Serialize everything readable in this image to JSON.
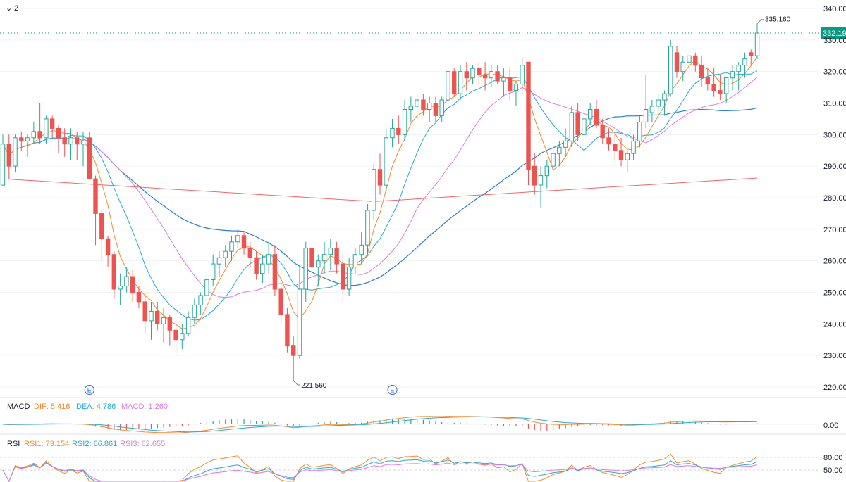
{
  "toolbar": {
    "collapse_glyph": "⌄",
    "count": "2"
  },
  "colors": {
    "up": "#26a69a",
    "down": "#ef5350",
    "grid": "#f0f3fa",
    "ma5": "#f28b30",
    "ma10": "#29a8d6",
    "ma20": "#e07be0",
    "ma60": "#2a7fd4",
    "ma250": "#ef6a6a",
    "price_tag": "#089981",
    "marker": "#2962ff"
  },
  "main_axis": {
    "ticks": [
      "340.00",
      "330.00",
      "320.00",
      "310.00",
      "300.00",
      "290.00",
      "280.00",
      "270.00",
      "260.00",
      "250.00",
      "240.00",
      "230.00",
      "220.00"
    ],
    "tick_values": [
      340,
      330,
      320,
      310,
      300,
      290,
      280,
      270,
      260,
      250,
      240,
      230,
      220
    ],
    "last_price": "332.19",
    "last_price_value": 332.19,
    "high_label": "335.160",
    "low_label": "221.560",
    "earnings_marker": "E"
  },
  "macd": {
    "title": "MACD",
    "dif": "DIF: 5.416",
    "dea": "DEA: 4.786",
    "macd": "MACD: 1.260",
    "axis_tick": "0.00"
  },
  "rsi": {
    "title": "RSI",
    "rsi1": "RSI1: 73.154",
    "rsi2": "RSI2: 66.861",
    "rsi3": "RSI3: 62.655",
    "axis_ticks": [
      "80.00",
      "50.00"
    ]
  },
  "chart_data": {
    "type": "candlestick",
    "ylim": [
      218,
      342
    ],
    "grid": true,
    "candles": [
      [
        284,
        300,
        284,
        297
      ],
      [
        297,
        300,
        286,
        290
      ],
      [
        290,
        300,
        288,
        299
      ],
      [
        299,
        301,
        295,
        298
      ],
      [
        298,
        300,
        293,
        299
      ],
      [
        299,
        304,
        297,
        301
      ],
      [
        301,
        310,
        297,
        299
      ],
      [
        299,
        306,
        297,
        305
      ],
      [
        305,
        306,
        299,
        302
      ],
      [
        302,
        303,
        294,
        299
      ],
      [
        299,
        302,
        293,
        297
      ],
      [
        297,
        302,
        292,
        299
      ],
      [
        299,
        301,
        292,
        297
      ],
      [
        297,
        301,
        290,
        298
      ],
      [
        299,
        301,
        287,
        286
      ],
      [
        286,
        287,
        265,
        275
      ],
      [
        275,
        276,
        260,
        267
      ],
      [
        267,
        268,
        258,
        262
      ],
      [
        262,
        263,
        248,
        251
      ],
      [
        251,
        256,
        246,
        252
      ],
      [
        252,
        258,
        250,
        255
      ],
      [
        255,
        257,
        247,
        250
      ],
      [
        250,
        252,
        245,
        247
      ],
      [
        247,
        250,
        237,
        241
      ],
      [
        241,
        247,
        235,
        244
      ],
      [
        244,
        247,
        238,
        240
      ],
      [
        240,
        245,
        234,
        242
      ],
      [
        242,
        243,
        233,
        238
      ],
      [
        238,
        240,
        230,
        235
      ],
      [
        235,
        240,
        232,
        237
      ],
      [
        237,
        244,
        236,
        242
      ],
      [
        242,
        248,
        240,
        246
      ],
      [
        246,
        250,
        243,
        249
      ],
      [
        249,
        256,
        247,
        254
      ],
      [
        254,
        262,
        252,
        259
      ],
      [
        259,
        263,
        255,
        261
      ],
      [
        261,
        265,
        258,
        263
      ],
      [
        263,
        268,
        260,
        266
      ],
      [
        266,
        270,
        264,
        268
      ],
      [
        268,
        269,
        262,
        264
      ],
      [
        264,
        266,
        258,
        261
      ],
      [
        261,
        263,
        254,
        256
      ],
      [
        256,
        262,
        253,
        259
      ],
      [
        259,
        266,
        256,
        262
      ],
      [
        262,
        265,
        249,
        251
      ],
      [
        251,
        253,
        240,
        243
      ],
      [
        243,
        245,
        231,
        233
      ],
      [
        233,
        236,
        222,
        230
      ],
      [
        230,
        258,
        229,
        251
      ],
      [
        251,
        266,
        247,
        264
      ],
      [
        264,
        266,
        254,
        258
      ],
      [
        258,
        262,
        252,
        260
      ],
      [
        260,
        266,
        256,
        262
      ],
      [
        262,
        267,
        257,
        264
      ],
      [
        264,
        266,
        256,
        259
      ],
      [
        259,
        263,
        247,
        251
      ],
      [
        251,
        261,
        249,
        258
      ],
      [
        258,
        264,
        256,
        262
      ],
      [
        262,
        269,
        259,
        265
      ],
      [
        265,
        278,
        262,
        276
      ],
      [
        276,
        291,
        273,
        289
      ],
      [
        289,
        294,
        281,
        284
      ],
      [
        284,
        302,
        282,
        299
      ],
      [
        299,
        305,
        296,
        302
      ],
      [
        302,
        306,
        297,
        300
      ],
      [
        300,
        311,
        298,
        308
      ],
      [
        308,
        312,
        304,
        309
      ],
      [
        309,
        313,
        305,
        311
      ],
      [
        311,
        313,
        306,
        308
      ],
      [
        308,
        312,
        304,
        310
      ],
      [
        310,
        312,
        304,
        306
      ],
      [
        306,
        312,
        304,
        311
      ],
      [
        311,
        321,
        308,
        320
      ],
      [
        320,
        321,
        312,
        313
      ],
      [
        313,
        322,
        311,
        320
      ],
      [
        320,
        323,
        314,
        318
      ],
      [
        318,
        322,
        316,
        321
      ],
      [
        321,
        323,
        316,
        319
      ],
      [
        319,
        323,
        314,
        318
      ],
      [
        318,
        322,
        315,
        320
      ],
      [
        320,
        322,
        316,
        317
      ],
      [
        317,
        321,
        312,
        318
      ],
      [
        318,
        321,
        311,
        314
      ],
      [
        314,
        317,
        309,
        316
      ],
      [
        316,
        324,
        313,
        322
      ],
      [
        323,
        323,
        284,
        289
      ],
      [
        290,
        294,
        281,
        284
      ],
      [
        284,
        290,
        277,
        287
      ],
      [
        287,
        292,
        283,
        290
      ],
      [
        290,
        297,
        288,
        294
      ],
      [
        294,
        298,
        290,
        296
      ],
      [
        296,
        302,
        293,
        298
      ],
      [
        298,
        309,
        296,
        307
      ],
      [
        307,
        310,
        298,
        300
      ],
      [
        300,
        308,
        298,
        305
      ],
      [
        305,
        310,
        303,
        308
      ],
      [
        308,
        311,
        302,
        303
      ],
      [
        303,
        305,
        297,
        299
      ],
      [
        299,
        302,
        295,
        297
      ],
      [
        297,
        301,
        292,
        295
      ],
      [
        295,
        299,
        290,
        292
      ],
      [
        292,
        295,
        288,
        294
      ],
      [
        294,
        300,
        292,
        298
      ],
      [
        298,
        306,
        296,
        304
      ],
      [
        304,
        319,
        302,
        308
      ],
      [
        307,
        311,
        304,
        309
      ],
      [
        309,
        313,
        305,
        311
      ],
      [
        311,
        314,
        306,
        313
      ],
      [
        313,
        330,
        312,
        328
      ],
      [
        326,
        328,
        318,
        320
      ],
      [
        320,
        325,
        317,
        323
      ],
      [
        323,
        326,
        319,
        325
      ],
      [
        325,
        326,
        320,
        322
      ],
      [
        322,
        325,
        315,
        318
      ],
      [
        318,
        321,
        314,
        316
      ],
      [
        316,
        321,
        312,
        314
      ],
      [
        314,
        319,
        311,
        313
      ],
      [
        313,
        317,
        310,
        318
      ],
      [
        318,
        322,
        314,
        320
      ],
      [
        320,
        323,
        314,
        322
      ],
      [
        322,
        326,
        318,
        324
      ],
      [
        326,
        327,
        322,
        325
      ],
      [
        325,
        335.16,
        324,
        332.19
      ]
    ]
  }
}
